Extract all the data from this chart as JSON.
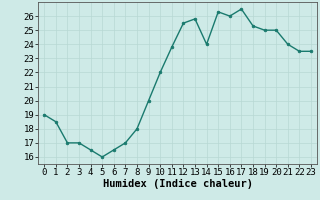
{
  "x": [
    0,
    1,
    2,
    3,
    4,
    5,
    6,
    7,
    8,
    9,
    10,
    11,
    12,
    13,
    14,
    15,
    16,
    17,
    18,
    19,
    20,
    21,
    22,
    23
  ],
  "y": [
    19,
    18.5,
    17,
    17,
    16.5,
    16,
    16.5,
    17,
    18,
    20,
    22,
    23.8,
    25.5,
    25.8,
    24,
    26.3,
    26,
    26.5,
    25.3,
    25,
    25,
    24,
    23.5,
    23.5
  ],
  "line_color": "#1a7a6e",
  "marker": "o",
  "marker_size": 2.0,
  "bg_color": "#ceeae7",
  "grid_color": "#b8d8d4",
  "xlabel": "Humidex (Indice chaleur)",
  "ylabel": "",
  "title": "",
  "xlim": [
    -0.5,
    23.5
  ],
  "ylim": [
    15.5,
    27.0
  ],
  "yticks": [
    16,
    17,
    18,
    19,
    20,
    21,
    22,
    23,
    24,
    25,
    26
  ],
  "xticks": [
    0,
    1,
    2,
    3,
    4,
    5,
    6,
    7,
    8,
    9,
    10,
    11,
    12,
    13,
    14,
    15,
    16,
    17,
    18,
    19,
    20,
    21,
    22,
    23
  ],
  "xtick_labels": [
    "0",
    "1",
    "2",
    "3",
    "4",
    "5",
    "6",
    "7",
    "8",
    "9",
    "10",
    "11",
    "12",
    "13",
    "14",
    "15",
    "16",
    "17",
    "18",
    "19",
    "20",
    "21",
    "22",
    "23"
  ],
  "tick_font_size": 6.5,
  "xlabel_font_size": 7.5,
  "line_width": 1.0,
  "spine_color": "#555555"
}
